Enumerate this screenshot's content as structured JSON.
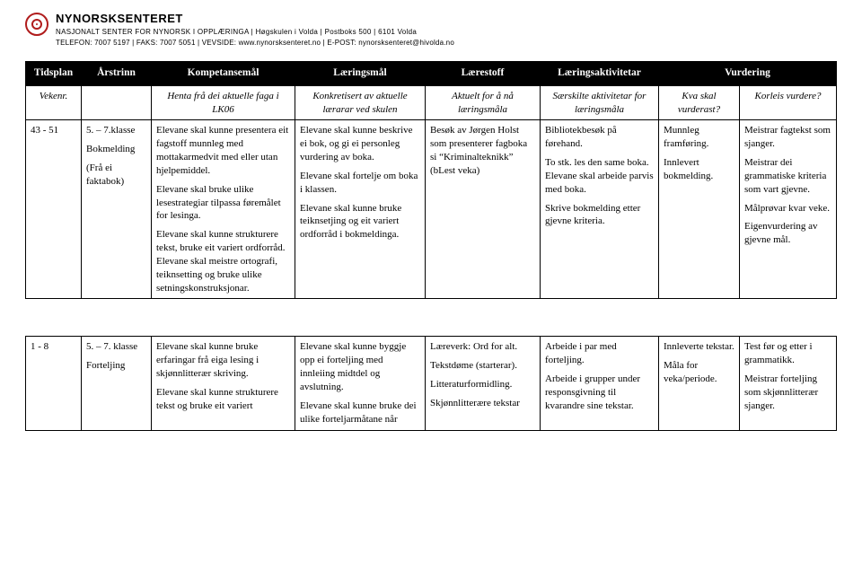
{
  "header": {
    "org_name": "NYNORSKSENTERET",
    "org_sub": "NASJONALT SENTER FOR NYNORSK I OPPLÆRINGA | Høgskulen i Volda | Postboks 500 | 6101 Volda",
    "org_contact": "TELEFON: 7007 5197 | FAKS: 7007 5051 | VEVSIDE: www.nynorsksenteret.no | E-POST: nynorsksenteret@hivolda.no"
  },
  "table": {
    "head": {
      "tidsplan": "Tidsplan",
      "arstrinn": "Årstrinn",
      "kompetansemal": "Kompetansemål",
      "laeringsmal": "Læringsmål",
      "laerestoff": "Lærestoff",
      "laeringsakt": "Læringsaktivitetar",
      "vurdering": "Vurdering"
    },
    "sub": {
      "vekenr": "Vekenr.",
      "blank": "",
      "komp": "Henta frå dei aktuelle faga i LK06",
      "lm": "Konkretisert av aktuelle lærarar ved skulen",
      "ls": "Aktuelt for å nå læringsmåla",
      "la": "Særskilte aktivitetar for læringsmåla",
      "v1": "Kva skal vurderast?",
      "v2": "Korleis vurdere?"
    },
    "rows": [
      {
        "tid": "43 - 51",
        "aar_p": [
          "5. – 7.klasse",
          "Bokmelding",
          "(Frå ei faktabok)"
        ],
        "komp_p": [
          "Elevane skal kunne presentera eit fagstoff munnleg med mottakarmedvit med eller utan hjelpemiddel.",
          "Elevane skal bruke ulike lesestrategiar tilpassa føremålet for lesinga.",
          "Elevane skal kunne strukturere tekst, bruke eit variert ordforråd. Elevane skal meistre ortografi, teiknsetting og bruke ulike setningskonstruksjonar."
        ],
        "lm_p": [
          "Elevane skal kunne beskrive ei bok, og gi ei personleg vurdering av boka.",
          "Elevane skal fortelje om boka i klassen.",
          "Elevane skal kunne bruke teiknsetjing og eit variert ordforråd i bokmeldinga."
        ],
        "ls_p": [
          "Besøk av Jørgen Holst som presenterer fagboka si “Kriminalteknikk” (bLest veka)"
        ],
        "la_p": [
          "Bibliotekbesøk på førehand.",
          "To stk. les den same boka. Elevane skal arbeide parvis med boka.",
          "Skrive bokmelding etter gjevne kriteria."
        ],
        "v1_p": [
          "Munnleg framføring.",
          "Innlevert bokmelding."
        ],
        "v2_p": [
          "Meistrar fagtekst som sjanger.",
          "Meistrar dei grammatiske kriteria som vart gjevne.",
          "Målprøvar kvar veke.",
          "Eigenvurdering av gjevne mål."
        ]
      },
      {
        "tid": "1 - 8",
        "aar_p": [
          "5. – 7. klasse",
          "Forteljing"
        ],
        "komp_p": [
          "Elevane skal kunne bruke erfaringar frå eiga lesing i skjønnlitterær skriving.",
          "Elevane skal kunne strukturere tekst og bruke eit variert"
        ],
        "lm_p": [
          "Elevane skal kunne byggje opp ei forteljing med innleiing midtdel og avslutning.",
          "Elevane skal kunne bruke dei ulike forteljarmåtane når"
        ],
        "ls_p": [
          "Læreverk: Ord for alt.",
          "Tekstdøme (starterar).",
          "Litteraturformidling.",
          "Skjønnlitterære tekstar"
        ],
        "la_p": [
          "Arbeide i par med forteljing.",
          "Arbeide i grupper under responsgivning til kvarandre sine tekstar."
        ],
        "v1_p": [
          "Innleverte tekstar.",
          "Måla for veka/periode."
        ],
        "v2_p": [
          "Test før og etter i grammatikk.",
          "Meistrar forteljing som skjønnlitterær sjanger."
        ]
      }
    ]
  }
}
